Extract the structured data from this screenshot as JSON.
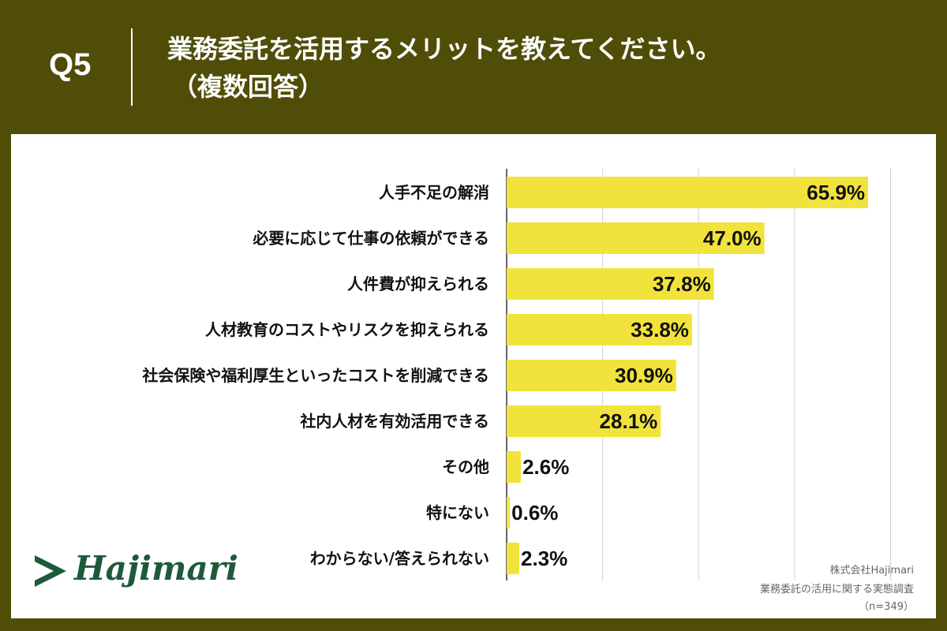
{
  "header": {
    "q_label": "Q5",
    "title_line1": "業務委託を活用するメリットを教えてください。",
    "title_line2": "（複数回答）"
  },
  "colors": {
    "background": "#4f4d07",
    "bar": "#f2e33c",
    "grid": "#cfcfcf",
    "text": "#111111",
    "logo": "#1e5a3a"
  },
  "chart_data": {
    "type": "bar",
    "orientation": "horizontal",
    "categories": [
      "人手不足の解消",
      "必要に応じて仕事の依頼ができる",
      "人件費が抑えられる",
      "人材教育のコストやリスクを抑えられる",
      "社会保険や福利厚生といったコストを削減できる",
      "社内人材を有効活用できる",
      "その他",
      "特にない",
      "わからない/答えられない"
    ],
    "values": [
      65.9,
      47.0,
      37.8,
      33.8,
      30.9,
      28.1,
      2.6,
      0.6,
      2.3
    ],
    "value_labels": [
      "65.9%",
      "47.0%",
      "37.8%",
      "33.8%",
      "30.9%",
      "28.1%",
      "2.6%",
      "0.6%",
      "2.3%"
    ],
    "xlim": [
      0,
      70
    ],
    "grid": true,
    "title": "業務委託を活用するメリットを教えてください。（複数回答）",
    "xlabel": "",
    "ylabel": ""
  },
  "branding": {
    "logo_text": "Hajimari",
    "credit_company": "株式会社Hajimari",
    "credit_survey": "業務委託の活用に関する実態調査",
    "credit_n": "（n=349）"
  }
}
